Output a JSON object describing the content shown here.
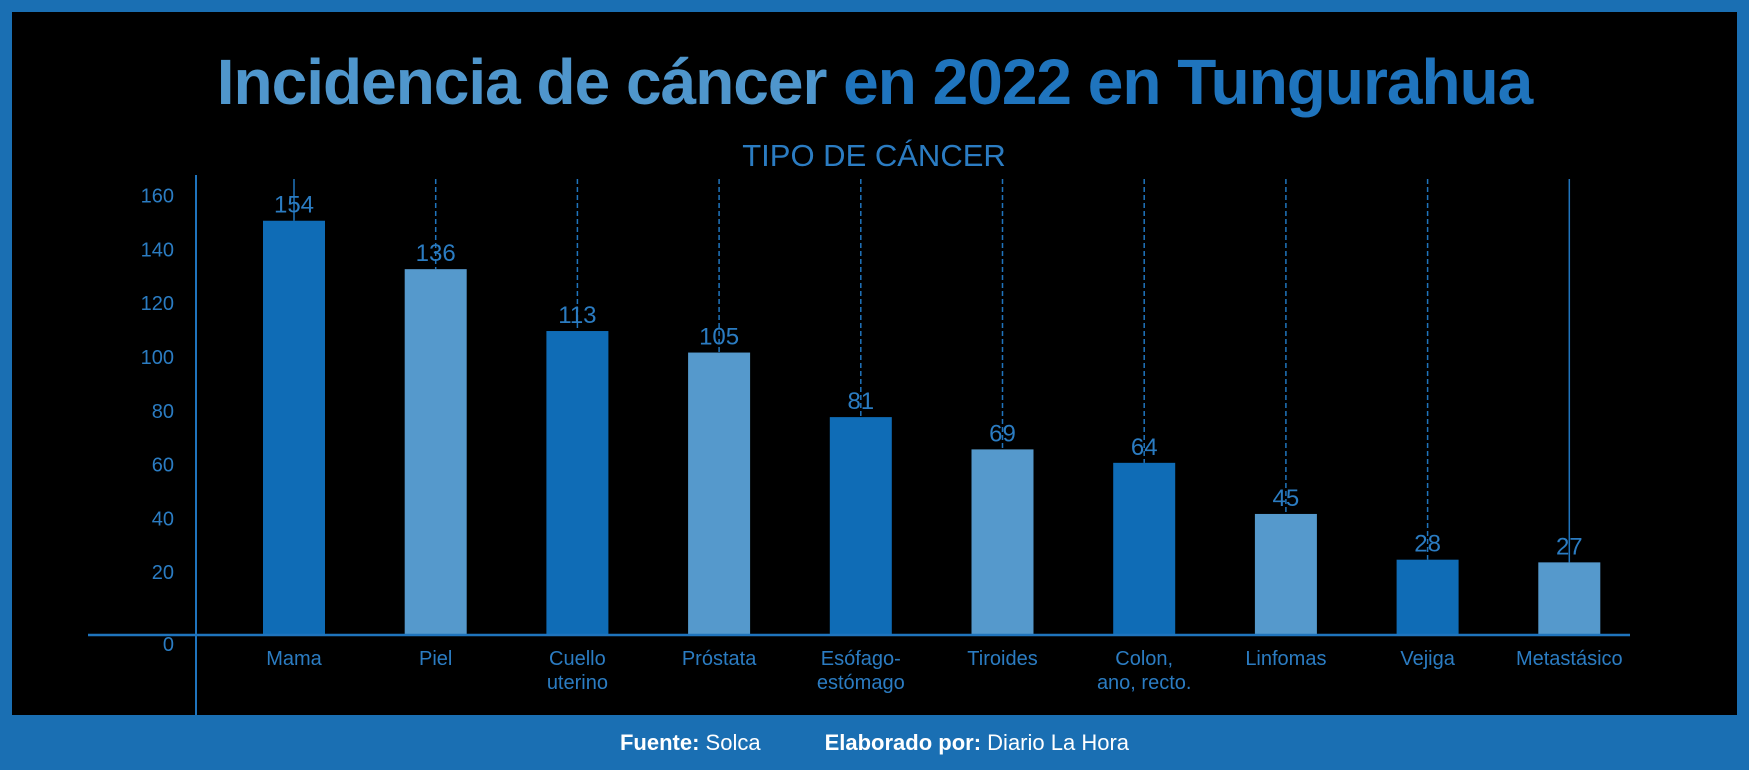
{
  "title": {
    "part1": "Incidencia de cáncer",
    "part2": "en 2022 en Tungurahua"
  },
  "footer": {
    "source_label": "Fuente:",
    "source_value": "Solca",
    "author_label": "Elaborado por:",
    "author_value": "Diario La Hora"
  },
  "colors": {
    "background": "#000000",
    "frame": "#1a6fb3",
    "bar_dark": "#0f6cb6",
    "bar_light": "#5599cc",
    "axis": "#1f74bd",
    "text": "#2b7cc2"
  },
  "chart_data": {
    "type": "bar",
    "title": "Incidencia de cáncer en 2022 en Tungurahua",
    "xlabel": "TIPO DE CÁNCER",
    "ylabel": "",
    "ylim": [
      0,
      170
    ],
    "yticks": [
      0,
      20,
      40,
      60,
      80,
      100,
      120,
      140,
      160
    ],
    "grid": false,
    "legend": "none",
    "categories": [
      "Mama",
      "Piel",
      "Cuello uterino",
      "Próstata",
      "Esófago-estómago",
      "Tiroides",
      "Colon, ano, recto.",
      "Linfomas",
      "Vejiga",
      "Metastásico"
    ],
    "category_lines": [
      [
        "Mama"
      ],
      [
        "Piel"
      ],
      [
        "Cuello",
        "uterino"
      ],
      [
        "Próstata"
      ],
      [
        "Esófago-",
        "estómago"
      ],
      [
        "Tiroides"
      ],
      [
        "Colon,",
        "ano, recto."
      ],
      [
        "Linfomas"
      ],
      [
        "Vejiga"
      ],
      [
        "Metastásico"
      ]
    ],
    "values": [
      154,
      136,
      113,
      105,
      81,
      69,
      64,
      45,
      28,
      27
    ]
  }
}
